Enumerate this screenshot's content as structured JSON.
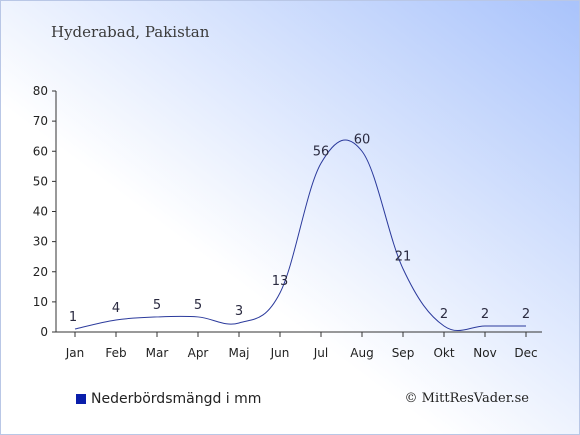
{
  "header": {
    "title": "Hyderabad, Pakistan"
  },
  "legend": {
    "label": "Nederbördsmängd i mm"
  },
  "footer": {
    "credit": "© MittResVader.se"
  },
  "colors": {
    "series": "#0a1eab",
    "line": "#2b3a9c"
  },
  "chart_data": {
    "type": "line",
    "categories": [
      "Jan",
      "Feb",
      "Mar",
      "Apr",
      "Maj",
      "Jun",
      "Jul",
      "Aug",
      "Sep",
      "Okt",
      "Nov",
      "Dec"
    ],
    "series": [
      {
        "name": "Nederbördsmängd i mm",
        "values": [
          1,
          4,
          5,
          5,
          3,
          13,
          56,
          60,
          21,
          2,
          2,
          2
        ]
      }
    ],
    "ylim": [
      0,
      80
    ],
    "yticks": [
      0,
      10,
      20,
      30,
      40,
      50,
      60,
      70,
      80
    ],
    "data_labels": true,
    "grid": false,
    "legend_position": "bottom-left"
  }
}
